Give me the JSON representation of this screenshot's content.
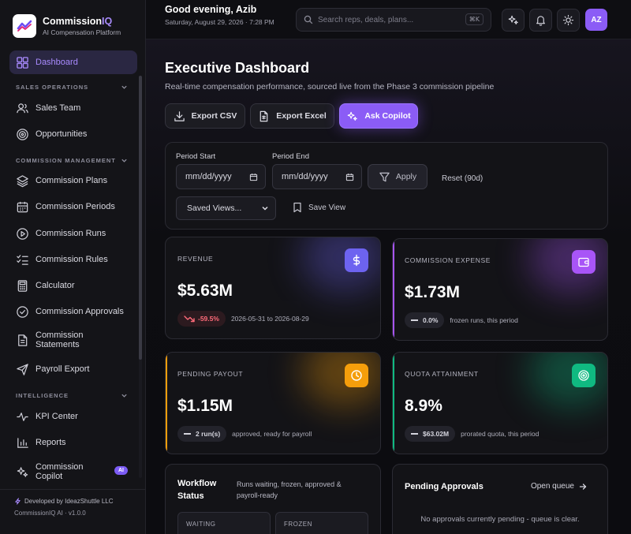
{
  "brand": {
    "name_prefix": "Commission",
    "name_accent": "IQ",
    "subtitle": "AI Compensation Platform"
  },
  "sidebar": {
    "dashboard": "Dashboard",
    "sections": {
      "sales_ops": "SALES OPERATIONS",
      "commission_mgmt": "COMMISSION MANAGEMENT",
      "intelligence": "INTELLIGENCE"
    },
    "items": {
      "sales_team": "Sales Team",
      "opportunities": "Opportunities",
      "plans": "Commission Plans",
      "periods": "Commission Periods",
      "runs": "Commission Runs",
      "rules": "Commission Rules",
      "calculator": "Calculator",
      "approvals": "Commission Approvals",
      "statements": "Commission Statements",
      "payroll": "Payroll Export",
      "kpi": "KPI Center",
      "reports": "Reports",
      "copilot": "Commission Copilot",
      "copilot_badge": "AI"
    },
    "footer": {
      "developer": "Developed by IdeazShuttle LLC",
      "version": "CommissionIQ AI · v1.0.0"
    }
  },
  "header": {
    "greeting": "Good evening, Azib",
    "date": "Saturday, August 29, 2026 · 7:28 PM",
    "search_placeholder": "Search reps, deals, plans...",
    "shortcut": "⌘K",
    "avatar": "AZ"
  },
  "page": {
    "title": "Executive Dashboard",
    "subtitle": "Real-time compensation performance, sourced live from the Phase 3 commission pipeline",
    "buttons": {
      "export_csv": "Export CSV",
      "export_excel": "Export Excel",
      "ask_copilot": "Ask Copilot"
    }
  },
  "filters": {
    "period_start_label": "Period Start",
    "period_end_label": "Period End",
    "date_placeholder": "mm/dd/yyyy",
    "apply": "Apply",
    "reset": "Reset (90d)",
    "saved_views": "Saved Views...",
    "save_view": "Save View"
  },
  "kpis": {
    "revenue": {
      "label": "REVENUE",
      "value": "$5.63M",
      "chip": "-59.5%",
      "foot": "2026-05-31 to 2026-08-29",
      "color": "#6d63f0"
    },
    "expense": {
      "label": "COMMISSION EXPENSE",
      "value": "$1.73M",
      "chip": "0.0%",
      "foot": "frozen runs, this period",
      "color": "#a855f7"
    },
    "pending": {
      "label": "PENDING PAYOUT",
      "value": "$1.15M",
      "chip": "2 run(s)",
      "foot": "approved, ready for payroll",
      "color": "#f59e0b"
    },
    "quota": {
      "label": "QUOTA ATTAINMENT",
      "value": "8.9%",
      "chip": "$63.02M",
      "foot": "prorated quota, this period",
      "color": "#10b981"
    }
  },
  "workflow": {
    "title": "Workflow Status",
    "desc": "Runs waiting, frozen, approved & payroll-ready",
    "waiting": "WAITING",
    "frozen": "FROZEN"
  },
  "approvals": {
    "title": "Pending Approvals",
    "link": "Open queue",
    "empty": "No approvals currently pending - queue is clear."
  }
}
